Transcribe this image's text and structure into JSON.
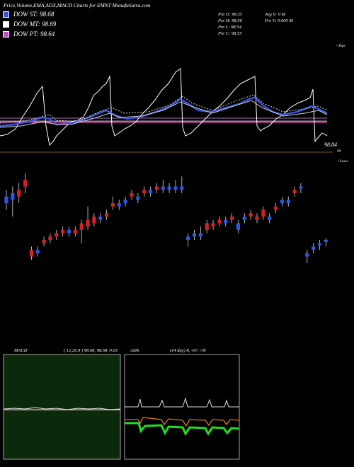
{
  "header": {
    "title": "Price,Volume,EMA,ADX,MACD Charts for EMNT MunafaSutra.com",
    "legend": [
      {
        "label": "DOW ST: 98.68",
        "color": "#3a4fd8"
      },
      {
        "label": "DOW MT: 98.69",
        "color": "#ffffff"
      },
      {
        "label": "DOW PT: 98.64",
        "color": "#c24fc2"
      }
    ]
  },
  "stats": {
    "prev_open": "Pre   O: 98.55",
    "prev_high": "Pre   H: 98.56",
    "prev_low": "Pre   L: 98.54",
    "prev_close": "Pre   C: 98.55",
    "avg_volume": "Avg V: 0   M",
    "prev_volume": "Pre   V: 0.005 M"
  },
  "labels": {
    "tops": "<Tops",
    "lows": "<Lows",
    "price_last": "98.84",
    "price_tick": "99"
  },
  "macd": {
    "label": "MACD",
    "params": "( 12,26,9 ) 98.68,  98.68,  0.03"
  },
  "adx": {
    "label": "ADX",
    "params": "(14  day) 8,  -67,  -78"
  },
  "colors": {
    "up": "#d42020",
    "down": "#2a57e6",
    "macd_bg": "#0b2a0b",
    "pink": "#d63fb0"
  },
  "chart_data": {
    "type": "candlestick",
    "candles": [
      {
        "dir": "down",
        "o": 98.64,
        "c": 98.63,
        "h": 98.65,
        "l": 98.62
      },
      {
        "dir": "down",
        "o": 98.645,
        "c": 98.635,
        "h": 98.655,
        "l": 98.61
      },
      {
        "dir": "up",
        "o": 98.64,
        "c": 98.65,
        "h": 98.66,
        "l": 98.63
      },
      {
        "dir": "up",
        "o": 98.655,
        "c": 98.665,
        "h": 98.675,
        "l": 98.645
      },
      {
        "dir": "up",
        "o": 98.55,
        "c": 98.56,
        "h": 98.565,
        "l": 98.545
      },
      {
        "dir": "down",
        "o": 98.56,
        "c": 98.555,
        "h": 98.565,
        "l": 98.55
      },
      {
        "dir": "up",
        "o": 98.57,
        "c": 98.575,
        "h": 98.58,
        "l": 98.565
      },
      {
        "dir": "up",
        "o": 98.575,
        "c": 98.58,
        "h": 98.585,
        "l": 98.57
      },
      {
        "dir": "up",
        "o": 98.58,
        "c": 98.585,
        "h": 98.59,
        "l": 98.575
      },
      {
        "dir": "up",
        "o": 98.585,
        "c": 98.59,
        "h": 98.595,
        "l": 98.58
      },
      {
        "dir": "down",
        "o": 98.59,
        "c": 98.585,
        "h": 98.595,
        "l": 98.58
      },
      {
        "dir": "up",
        "o": 98.585,
        "c": 98.59,
        "h": 98.595,
        "l": 98.58
      },
      {
        "dir": "up",
        "o": 98.59,
        "c": 98.6,
        "h": 98.605,
        "l": 98.57
      },
      {
        "dir": "up",
        "o": 98.595,
        "c": 98.605,
        "h": 98.625,
        "l": 98.59
      },
      {
        "dir": "up",
        "o": 98.6,
        "c": 98.61,
        "h": 98.615,
        "l": 98.595
      },
      {
        "dir": "down",
        "o": 98.61,
        "c": 98.605,
        "h": 98.615,
        "l": 98.6
      },
      {
        "dir": "up",
        "o": 98.61,
        "c": 98.615,
        "h": 98.62,
        "l": 98.605
      },
      {
        "dir": "up",
        "o": 98.625,
        "c": 98.63,
        "h": 98.64,
        "l": 98.62
      },
      {
        "dir": "down",
        "o": 98.63,
        "c": 98.625,
        "h": 98.635,
        "l": 98.62
      },
      {
        "dir": "down",
        "o": 98.635,
        "c": 98.63,
        "h": 98.64,
        "l": 98.625
      },
      {
        "dir": "up",
        "o": 98.64,
        "c": 98.645,
        "h": 98.65,
        "l": 98.635
      },
      {
        "dir": "down",
        "o": 98.64,
        "c": 98.635,
        "h": 98.645,
        "l": 98.63
      },
      {
        "dir": "up",
        "o": 98.645,
        "c": 98.65,
        "h": 98.655,
        "l": 98.64
      },
      {
        "dir": "down",
        "o": 98.65,
        "c": 98.645,
        "h": 98.655,
        "l": 98.64
      },
      {
        "dir": "up",
        "o": 98.65,
        "c": 98.655,
        "h": 98.66,
        "l": 98.645
      },
      {
        "dir": "down",
        "o": 98.655,
        "c": 98.65,
        "h": 98.665,
        "l": 98.645
      },
      {
        "dir": "down",
        "o": 98.655,
        "c": 98.65,
        "h": 98.66,
        "l": 98.645
      },
      {
        "dir": "down",
        "o": 98.655,
        "c": 98.65,
        "h": 98.665,
        "l": 98.645
      },
      {
        "dir": "down",
        "o": 98.655,
        "c": 98.65,
        "h": 98.67,
        "l": 98.645
      },
      {
        "dir": "down",
        "o": 98.58,
        "c": 98.575,
        "h": 98.585,
        "l": 98.565
      },
      {
        "dir": "down",
        "o": 98.585,
        "c": 98.58,
        "h": 98.59,
        "l": 98.575
      },
      {
        "dir": "down",
        "o": 98.585,
        "c": 98.58,
        "h": 98.595,
        "l": 98.575
      },
      {
        "dir": "up",
        "o": 98.59,
        "c": 98.6,
        "h": 98.605,
        "l": 98.585
      },
      {
        "dir": "up",
        "o": 98.595,
        "c": 98.6,
        "h": 98.605,
        "l": 98.59
      },
      {
        "dir": "up",
        "o": 98.6,
        "c": 98.605,
        "h": 98.61,
        "l": 98.595
      },
      {
        "dir": "down",
        "o": 98.605,
        "c": 98.6,
        "h": 98.61,
        "l": 98.595
      },
      {
        "dir": "up",
        "o": 98.605,
        "c": 98.61,
        "h": 98.615,
        "l": 98.6
      },
      {
        "dir": "down",
        "o": 98.6,
        "c": 98.59,
        "h": 98.605,
        "l": 98.585
      },
      {
        "dir": "down",
        "o": 98.61,
        "c": 98.605,
        "h": 98.615,
        "l": 98.6
      },
      {
        "dir": "up",
        "o": 98.61,
        "c": 98.615,
        "h": 98.62,
        "l": 98.605
      },
      {
        "dir": "up",
        "o": 98.605,
        "c": 98.61,
        "h": 98.615,
        "l": 98.6
      },
      {
        "dir": "up",
        "o": 98.61,
        "c": 98.62,
        "h": 98.625,
        "l": 98.605
      },
      {
        "dir": "down",
        "o": 98.61,
        "c": 98.605,
        "h": 98.615,
        "l": 98.6
      },
      {
        "dir": "up",
        "o": 98.62,
        "c": 98.625,
        "h": 98.63,
        "l": 98.615
      },
      {
        "dir": "down",
        "o": 98.635,
        "c": 98.63,
        "h": 98.64,
        "l": 98.625
      },
      {
        "dir": "down",
        "o": 98.635,
        "c": 98.63,
        "h": 98.64,
        "l": 98.625
      },
      {
        "dir": "up",
        "o": 98.645,
        "c": 98.65,
        "h": 98.655,
        "l": 98.64
      },
      {
        "dir": "down",
        "o": 98.655,
        "c": 98.652,
        "h": 98.66,
        "l": 98.645
      },
      {
        "dir": "down",
        "o": 98.555,
        "c": 98.55,
        "h": 98.56,
        "l": 98.54
      },
      {
        "dir": "down",
        "o": 98.565,
        "c": 98.56,
        "h": 98.57,
        "l": 98.555
      },
      {
        "dir": "down",
        "o": 98.57,
        "c": 98.568,
        "h": 98.575,
        "l": 98.56
      },
      {
        "dir": "down",
        "o": 98.575,
        "c": 98.572,
        "h": 98.578,
        "l": 98.565
      }
    ]
  }
}
